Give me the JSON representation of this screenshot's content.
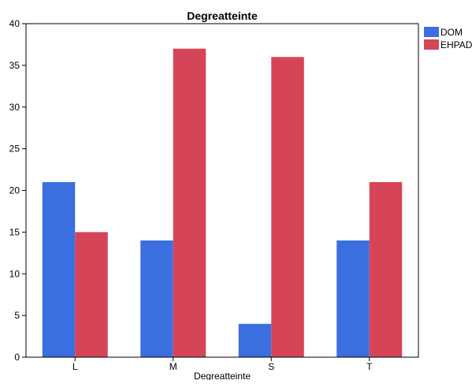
{
  "chart_data": {
    "type": "bar",
    "title": "Degreatteinte",
    "xlabel": "Degreatteinte",
    "ylabel": "",
    "categories": [
      "L",
      "M",
      "S",
      "T"
    ],
    "series": [
      {
        "name": "DOM",
        "values": [
          21,
          14,
          4,
          14
        ]
      },
      {
        "name": "EHPAD",
        "values": [
          15,
          37,
          36,
          21
        ]
      }
    ],
    "ylim": [
      0,
      40
    ],
    "yticks": [
      0,
      5,
      10,
      15,
      20,
      25,
      30,
      35,
      40
    ],
    "grid": false,
    "legend_position": "top-right",
    "colors": {
      "DOM": "#3b6fe0",
      "EHPAD": "#d64457"
    }
  }
}
